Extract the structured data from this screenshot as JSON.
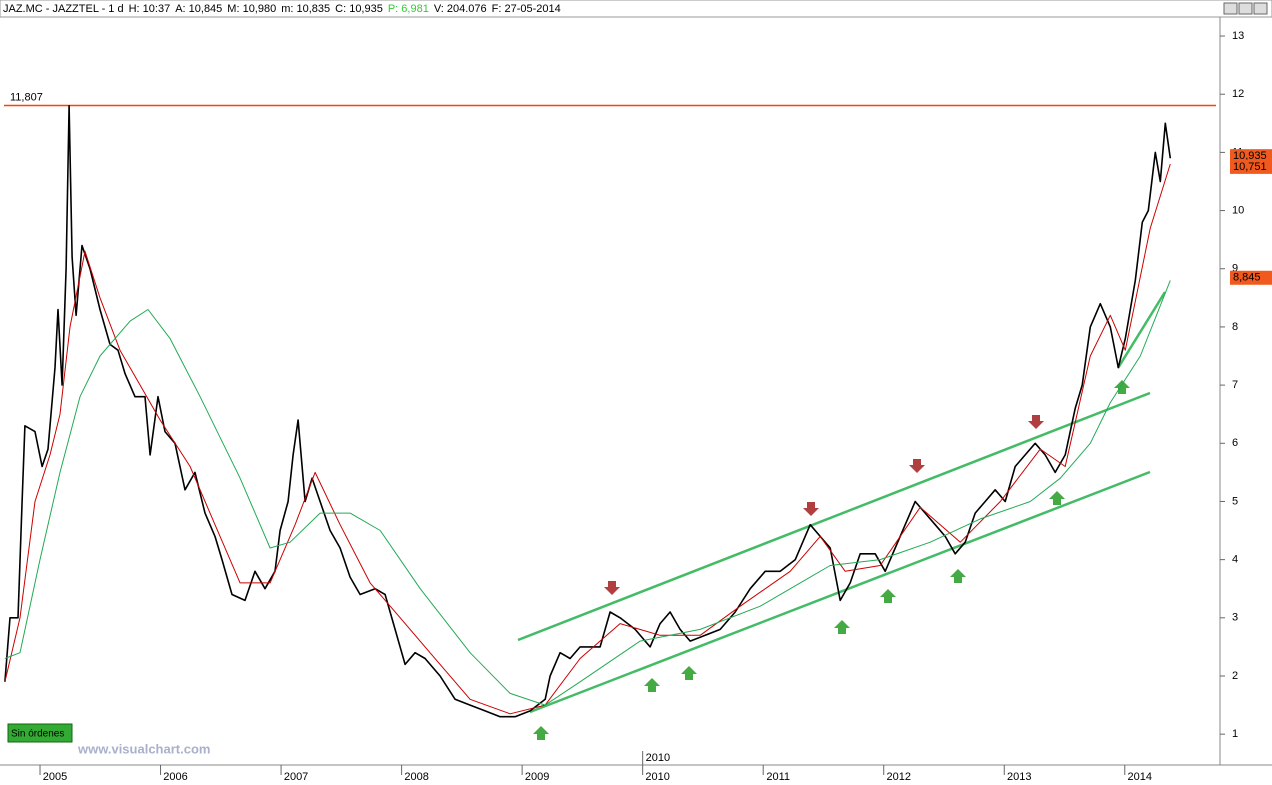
{
  "chart_data": {
    "type": "line",
    "header": [
      "JAZ.MC - JAZZTEL - 1 d",
      "H: 10:37",
      "A: 10,845",
      "M: 10,980",
      "m: 10,835",
      "C: 10,935",
      "P: 6,981",
      "V: 204.076",
      "F: 27-05-2014"
    ],
    "xlim": [
      2004.668,
      2014.79
    ],
    "ylim": [
      0.47,
      13.31
    ],
    "xticks": [
      2005,
      2006,
      2007,
      2008,
      2009,
      2010,
      2011,
      2012,
      2013,
      2014
    ],
    "yticks": [
      1,
      2,
      3,
      4,
      5,
      6,
      7,
      8,
      9,
      10,
      11,
      12,
      13
    ],
    "cursor_label": "2010",
    "reference_line": {
      "value": 11.807,
      "label": "11,807",
      "color": "#ff4000"
    },
    "price_labels": [
      {
        "value": 10.935,
        "label": "10,935"
      },
      {
        "value": 10.751,
        "label": "10,751"
      },
      {
        "value": 8.845,
        "label": "8,845"
      }
    ],
    "status": "Sin órdenes",
    "watermark": "www.visualchart.com",
    "x": [
      2004.709,
      2004.751,
      2004.817,
      2004.851,
      2004.875,
      2004.958,
      2005.017,
      2005.066,
      2005.124,
      2005.149,
      2005.183,
      2005.216,
      2005.241,
      2005.266,
      2005.299,
      2005.348,
      2005.415,
      2005.498,
      2005.581,
      2005.647,
      2005.705,
      2005.788,
      2005.871,
      2005.913,
      2005.979,
      2006.037,
      2006.12,
      2006.203,
      2006.286,
      2006.369,
      2006.452,
      2006.51,
      2006.593,
      2006.701,
      2006.784,
      2006.867,
      2006.95,
      2006.992,
      2007.058,
      2007.1,
      2007.141,
      2007.199,
      2007.257,
      2007.324,
      2007.407,
      2007.49,
      2007.573,
      2007.656,
      2007.78,
      2007.863,
      2007.946,
      2008.029,
      2008.112,
      2008.195,
      2008.319,
      2008.444,
      2008.568,
      2008.693,
      2008.817,
      2008.942,
      2009.066,
      2009.191,
      2009.232,
      2009.315,
      2009.398,
      2009.481,
      2009.647,
      2009.73,
      2009.813,
      2009.938,
      2010.062,
      2010.145,
      2010.228,
      2010.311,
      2010.394,
      2010.519,
      2010.643,
      2010.768,
      2010.892,
      2011.017,
      2011.141,
      2011.266,
      2011.39,
      2011.473,
      2011.556,
      2011.639,
      2011.722,
      2011.805,
      2011.929,
      2012.012,
      2012.095,
      2012.178,
      2012.261,
      2012.344,
      2012.427,
      2012.51,
      2012.593,
      2012.676,
      2012.759,
      2012.842,
      2012.925,
      2013.008,
      2013.091,
      2013.174,
      2013.257,
      2013.34,
      2013.423,
      2013.506,
      2013.589,
      2013.647,
      2013.714,
      2013.797,
      2013.88,
      2013.946,
      2014.004,
      2014.087,
      2014.145,
      2014.195,
      2014.253,
      2014.295,
      2014.336,
      2014.378
    ],
    "series": [
      {
        "color": "#000000",
        "width": 1.6,
        "values": [
          1.9,
          3.0,
          3.0,
          5.0,
          6.3,
          6.2,
          5.6,
          5.9,
          7.3,
          8.3,
          7.0,
          9.0,
          11.8,
          9.2,
          8.2,
          9.4,
          9.0,
          8.3,
          7.7,
          7.6,
          7.2,
          6.8,
          6.8,
          5.8,
          6.8,
          6.2,
          6.0,
          5.2,
          5.5,
          4.8,
          4.4,
          4.0,
          3.4,
          3.3,
          3.8,
          3.5,
          3.8,
          4.5,
          5.0,
          5.8,
          6.4,
          5.0,
          5.4,
          5.0,
          4.5,
          4.2,
          3.7,
          3.4,
          3.5,
          3.4,
          2.8,
          2.2,
          2.4,
          2.3,
          2.0,
          1.6,
          1.5,
          1.4,
          1.3,
          1.3,
          1.4,
          1.6,
          2.0,
          2.4,
          2.3,
          2.5,
          2.5,
          3.1,
          3.0,
          2.8,
          2.5,
          2.9,
          3.1,
          2.8,
          2.6,
          2.7,
          2.8,
          3.1,
          3.5,
          3.8,
          3.8,
          4.0,
          4.6,
          4.4,
          4.2,
          3.3,
          3.6,
          4.1,
          4.1,
          3.8,
          4.2,
          4.6,
          5.0,
          4.8,
          4.6,
          4.4,
          4.1,
          4.3,
          4.8,
          5.0,
          5.2,
          5.0,
          5.6,
          5.8,
          6.0,
          5.8,
          5.5,
          5.8,
          6.6,
          7.0,
          8.0,
          8.4,
          8.0,
          7.3,
          7.8,
          8.8,
          9.8,
          10.0,
          11.0,
          10.5,
          11.5,
          10.9
        ]
      },
      {
        "color": "#cc0000",
        "width": 1,
        "x": [
          2004.709,
          2004.834,
          2004.958,
          2005.083,
          2005.166,
          2005.249,
          2005.373,
          2005.498,
          2005.664,
          2005.83,
          2005.996,
          2006.245,
          2006.452,
          2006.66,
          2006.909,
          2007.116,
          2007.282,
          2007.49,
          2007.739,
          2007.988,
          2008.236,
          2008.568,
          2008.9,
          2009.191,
          2009.481,
          2009.813,
          2010.145,
          2010.477,
          2010.809,
          2011.224,
          2011.473,
          2011.68,
          2011.971,
          2012.303,
          2012.635,
          2012.967,
          2013.299,
          2013.506,
          2013.714,
          2013.88,
          2014.004,
          2014.212,
          2014.378
        ],
        "values": [
          1.9,
          3.0,
          5.0,
          5.8,
          6.5,
          8.0,
          9.3,
          8.5,
          7.6,
          7.0,
          6.4,
          5.6,
          4.6,
          3.6,
          3.6,
          4.6,
          5.5,
          4.6,
          3.6,
          3.0,
          2.4,
          1.6,
          1.35,
          1.5,
          2.3,
          2.9,
          2.7,
          2.7,
          3.2,
          3.8,
          4.4,
          3.8,
          3.9,
          4.9,
          4.3,
          5.0,
          5.9,
          5.6,
          7.5,
          8.2,
          7.6,
          9.7,
          10.8
        ]
      },
      {
        "color": "#22aa55",
        "width": 1,
        "x": [
          2004.709,
          2004.834,
          2005.0,
          2005.166,
          2005.332,
          2005.498,
          2005.747,
          2005.896,
          2006.079,
          2006.328,
          2006.66,
          2006.909,
          2007.075,
          2007.324,
          2007.573,
          2007.822,
          2008.154,
          2008.568,
          2008.9,
          2009.191,
          2009.481,
          2009.979,
          2010.477,
          2010.975,
          2011.307,
          2011.556,
          2011.971,
          2012.386,
          2012.801,
          2013.216,
          2013.465,
          2013.714,
          2013.88,
          2014.129,
          2014.378
        ],
        "values": [
          2.3,
          2.4,
          4.0,
          5.5,
          6.8,
          7.5,
          8.1,
          8.3,
          7.8,
          6.8,
          5.4,
          4.2,
          4.3,
          4.8,
          4.8,
          4.5,
          3.5,
          2.4,
          1.7,
          1.5,
          1.9,
          2.6,
          2.8,
          3.2,
          3.6,
          3.9,
          4.0,
          4.3,
          4.7,
          5.0,
          5.4,
          6.0,
          6.7,
          7.5,
          8.8
        ]
      }
    ]
  }
}
